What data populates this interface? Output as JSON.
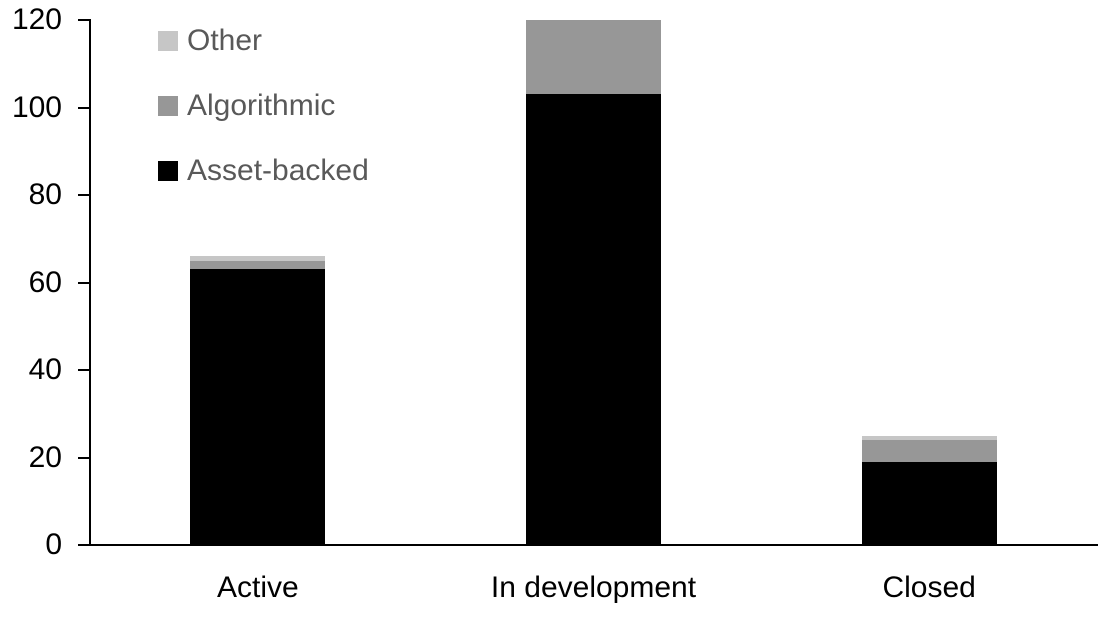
{
  "chart_data": {
    "type": "bar",
    "stacked": true,
    "title": "",
    "xlabel": "",
    "ylabel": "",
    "categories": [
      "Active",
      "In development",
      "Closed"
    ],
    "series": [
      {
        "name": "Asset-backed",
        "color": "#000000",
        "values": [
          63,
          103,
          19
        ]
      },
      {
        "name": "Algorithmic",
        "color": "#979797",
        "values": [
          2,
          17,
          5
        ]
      },
      {
        "name": "Other",
        "color": "#c6c6c6",
        "values": [
          1,
          0,
          1
        ]
      }
    ],
    "ylim": [
      0,
      120
    ],
    "ytick_step": 20,
    "ytick_labels": [
      "0",
      "20",
      "40",
      "60",
      "80",
      "100",
      "120"
    ],
    "grid": false,
    "legend_position": "top-left",
    "colors": {
      "axis": "#000000",
      "tick_label": "#000000",
      "legend_text": "#595959",
      "background": "#ffffff"
    }
  }
}
